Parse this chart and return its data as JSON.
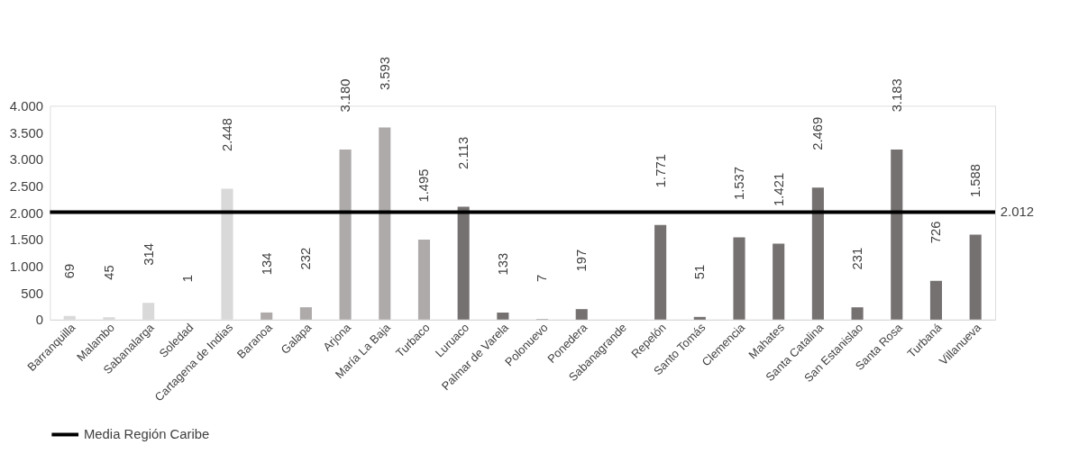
{
  "chart_data": {
    "type": "bar",
    "categories": [
      "Barranquilla",
      "Malambo",
      "Sabanalarga",
      "Soledad",
      "Cartagena de Indias",
      "Baranoa",
      "Galapa",
      "Arjona",
      "María La Baja",
      "Turbaco",
      "Luruaco",
      "Palmar de Varela",
      "Polonuevo",
      "Ponedera",
      "Sabanagrande",
      "Repelón",
      "Santo Tomás",
      "Clemencia",
      "Mahates",
      "Santa Catalina",
      "San Estanislao",
      "Santa Rosa",
      "Turbaná",
      "Villanueva"
    ],
    "values": [
      69,
      45,
      314,
      1,
      2448,
      134,
      232,
      3180,
      3593,
      1495,
      2113,
      133,
      7,
      197,
      null,
      1771,
      51,
      1537,
      1421,
      2469,
      231,
      3183,
      726,
      1588
    ],
    "value_labels": [
      "69",
      "45",
      "314",
      "1",
      "2.448",
      "134",
      "232",
      "3.180",
      "3.593",
      "1.495",
      "2.113",
      "133",
      "7",
      "197",
      null,
      "1.771",
      "51",
      "1.537",
      "1.421",
      "2.469",
      "231",
      "3.183",
      "726",
      "1.588"
    ],
    "colors": [
      "#d9d9d9",
      "#d9d9d9",
      "#d9d9d9",
      "#d9d9d9",
      "#d9d9d9",
      "#aeaaaa",
      "#aeaaaa",
      "#aeaaaa",
      "#aeaaaa",
      "#aeaaaa",
      "#767171",
      "#767171",
      "#767171",
      "#767171",
      "#767171",
      "#767171",
      "#767171",
      "#767171",
      "#767171",
      "#767171",
      "#767171",
      "#767171",
      "#767171",
      "#767171"
    ],
    "ylim": [
      0,
      4000
    ],
    "yticks": [
      {
        "value": 0,
        "label": "0"
      },
      {
        "value": 500,
        "label": "500"
      },
      {
        "value": 1000,
        "label": "1.000"
      },
      {
        "value": 1500,
        "label": "1.500"
      },
      {
        "value": 2000,
        "label": "2.000"
      },
      {
        "value": 2500,
        "label": "2.500"
      },
      {
        "value": 3000,
        "label": "3.000"
      },
      {
        "value": 3500,
        "label": "3.500"
      },
      {
        "value": 4000,
        "label": "4.000"
      }
    ],
    "ref_lines": [
      {
        "axis": "y",
        "value": 2012,
        "label": "Media Región Caribe",
        "color": "#000000"
      }
    ],
    "annotations": [
      {
        "text": "2.012",
        "x": "Villanueva",
        "y": 2012
      }
    ],
    "grid": false,
    "legend": "bottom"
  }
}
